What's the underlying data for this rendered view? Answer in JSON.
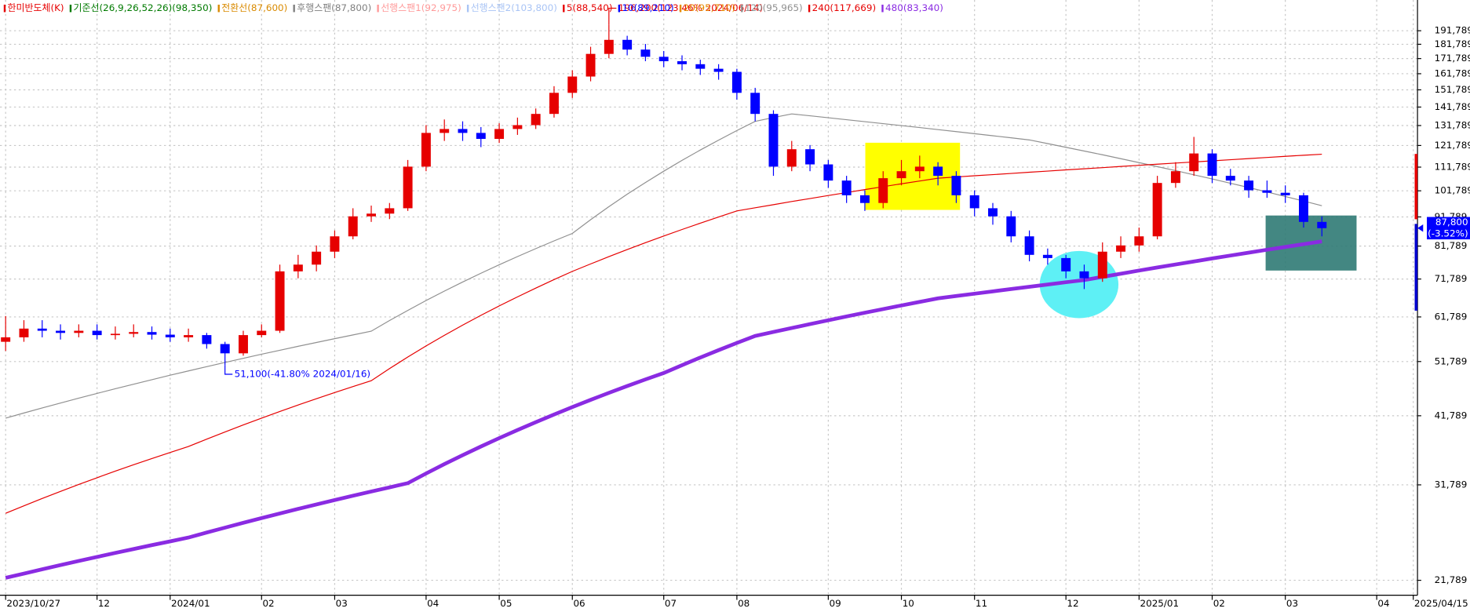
{
  "chart_data": {
    "type": "candlestick",
    "log_scale": true,
    "grid": true,
    "legend_position": "top-left",
    "ylim": [
      20540,
      216600
    ],
    "yticks": [
      {
        "value": 191789,
        "label": "191,789"
      },
      {
        "value": 181789,
        "label": "181,789"
      },
      {
        "value": 171789,
        "label": "171,789"
      },
      {
        "value": 161789,
        "label": "161,789"
      },
      {
        "value": 151789,
        "label": "151,789"
      },
      {
        "value": 141789,
        "label": "141,789"
      },
      {
        "value": 131789,
        "label": "131,789"
      },
      {
        "value": 121789,
        "label": "121,789"
      },
      {
        "value": 111789,
        "label": "111,789"
      },
      {
        "value": 101789,
        "label": "101,789"
      },
      {
        "value": 91789,
        "label": "91,789"
      },
      {
        "value": 81789,
        "label": "81,789"
      },
      {
        "value": 71789,
        "label": "71,789"
      },
      {
        "value": 61789,
        "label": "61,789"
      },
      {
        "value": 51789,
        "label": "51,789"
      },
      {
        "value": 41789,
        "label": "41,789"
      },
      {
        "value": 31789,
        "label": "31,789"
      },
      {
        "value": 21789,
        "label": "21,789"
      }
    ],
    "categories": [
      "2023/10/27",
      null,
      null,
      null,
      null,
      "12",
      null,
      null,
      null,
      "2024/01",
      null,
      null,
      null,
      null,
      "02",
      null,
      null,
      null,
      "03",
      null,
      null,
      null,
      null,
      "04",
      null,
      null,
      null,
      "05",
      null,
      null,
      null,
      "06",
      null,
      null,
      null,
      null,
      "07",
      null,
      null,
      null,
      "08",
      null,
      null,
      null,
      null,
      "09",
      null,
      null,
      null,
      "10",
      null,
      null,
      null,
      "11",
      null,
      null,
      null,
      null,
      "12",
      null,
      null,
      null,
      "2025/01",
      null,
      null,
      null,
      "02",
      null,
      null,
      null,
      "03",
      null,
      null,
      null,
      null,
      "04",
      null,
      "2025/04/15"
    ],
    "ohlc": {
      "name": "한미반도체(K)",
      "color": "#e60000",
      "color_down": "#0000ff",
      "open": [
        56000,
        57000,
        59000,
        58500,
        58000,
        58500,
        57500,
        57800,
        58200,
        57600,
        57000,
        57500,
        55500,
        53500,
        57500,
        58500,
        74000,
        76000,
        80000,
        85000,
        92000,
        93000,
        95000,
        112000,
        128000,
        130000,
        128000,
        125000,
        130000,
        132000,
        138000,
        150000,
        160000,
        175000,
        185000,
        178000,
        173000,
        170000,
        168000,
        165000,
        163000,
        150000,
        138000,
        112000,
        120000,
        113000,
        106000,
        100000,
        97000,
        107000,
        110000,
        112000,
        108000,
        100000,
        95000,
        92000,
        85000,
        79000,
        78000,
        74000,
        72000,
        80000,
        82000,
        85000,
        105000,
        110000,
        118000,
        108000,
        106000,
        102000,
        101000,
        100000,
        90000,
        null,
        null,
        null,
        null,
        null
      ],
      "high": [
        62000,
        61000,
        61000,
        60000,
        60000,
        60000,
        59500,
        60000,
        59500,
        59000,
        59000,
        58000,
        56000,
        58500,
        60000,
        76000,
        79000,
        82000,
        87000,
        95000,
        96000,
        97000,
        115000,
        132000,
        135000,
        134000,
        131000,
        133000,
        136000,
        141000,
        154000,
        164000,
        180000,
        196200,
        188000,
        182000,
        177000,
        174000,
        171000,
        168000,
        165000,
        153000,
        140000,
        124000,
        122000,
        115000,
        108000,
        102000,
        110000,
        115000,
        117000,
        114000,
        110000,
        102000,
        97000,
        94000,
        87000,
        81000,
        79000,
        76000,
        83000,
        85000,
        88000,
        108000,
        114000,
        126000,
        120000,
        111000,
        108000,
        106000,
        104000,
        101000,
        92000,
        null,
        null,
        null,
        null,
        null
      ],
      "low": [
        54000,
        56000,
        57000,
        56500,
        57000,
        56500,
        56500,
        57000,
        56500,
        56000,
        56000,
        54500,
        51100,
        53000,
        57000,
        58000,
        72000,
        74000,
        78000,
        84000,
        90000,
        91000,
        94000,
        110000,
        124000,
        124000,
        121000,
        123000,
        127000,
        130000,
        136000,
        147000,
        157000,
        172000,
        174000,
        170000,
        166000,
        164000,
        161000,
        158000,
        146000,
        134000,
        108000,
        110000,
        110000,
        103000,
        97000,
        94000,
        95000,
        104000,
        107000,
        104000,
        97000,
        92000,
        89000,
        83000,
        77000,
        76000,
        72000,
        69000,
        71000,
        78000,
        80000,
        84000,
        103000,
        108000,
        105000,
        104000,
        99000,
        99000,
        97000,
        88000,
        85000,
        null,
        null,
        null,
        null,
        null
      ],
      "close": [
        57000,
        59000,
        58500,
        58000,
        58500,
        57500,
        57800,
        58200,
        57600,
        57000,
        57500,
        55500,
        53500,
        57500,
        58500,
        74000,
        76000,
        80000,
        85000,
        92000,
        93000,
        95000,
        112000,
        128000,
        130000,
        128000,
        125000,
        130000,
        132000,
        138000,
        150000,
        160000,
        175000,
        185000,
        178000,
        173000,
        170000,
        168000,
        165000,
        163000,
        150000,
        138000,
        112000,
        120000,
        113000,
        106000,
        100000,
        97000,
        107000,
        110000,
        112000,
        108000,
        100000,
        95000,
        92000,
        85000,
        79000,
        78000,
        74000,
        72000,
        80000,
        82000,
        85000,
        105000,
        110000,
        118000,
        108000,
        106000,
        102000,
        101000,
        100000,
        90000,
        87800,
        null,
        null,
        null,
        null,
        null
      ]
    },
    "series": [
      {
        "name": "기준선(26,9,26,52,26)(98,350)",
        "color": "#007a00"
      },
      {
        "name": "전환선(87,600)",
        "color": "#d98a00"
      },
      {
        "name": "후행스팬(87,800)",
        "color": "#808080"
      },
      {
        "name": "선행스팬1(92,975)",
        "color": "#ff9a9a"
      },
      {
        "name": "선행스팬2(103,800)",
        "color": "#a9c4f5"
      },
      {
        "name": "5(88,540)",
        "color": "#e60000"
      },
      {
        "name": "10(89,210)",
        "color": "#0000ff"
      },
      {
        "name": "20(95,710)",
        "color": "#e68a00"
      },
      {
        "name": "120(95,965)",
        "color": "#909090",
        "width": 1,
        "values": [
          41400,
          42250,
          43100,
          43950,
          44800,
          45650,
          46500,
          47350,
          48200,
          49050,
          49900,
          50750,
          51600,
          52450,
          53300,
          54150,
          55000,
          55850,
          56700,
          57550,
          58400,
          60910,
          63420,
          65930,
          68440,
          70950,
          73450,
          75960,
          78470,
          80980,
          83490,
          86000,
          90800,
          95600,
          100400,
          105200,
          110000,
          114800,
          119600,
          124400,
          129200,
          134000,
          136000,
          138000,
          136960,
          135920,
          134890,
          133850,
          132810,
          131770,
          130730,
          129690,
          128660,
          127620,
          126580,
          125540,
          124500,
          122720,
          120930,
          119150,
          117370,
          115590,
          113800,
          112020,
          110240,
          108450,
          106670,
          104890,
          103110,
          101320,
          99540,
          97760,
          95965,
          null,
          null,
          null,
          null,
          null
        ]
      },
      {
        "name": "240(117,669)",
        "color": "#e60000",
        "width": 1,
        "values": [
          28400,
          29260,
          30120,
          30980,
          31840,
          32700,
          33560,
          34420,
          35280,
          36140,
          37000,
          38100,
          39200,
          40300,
          41400,
          42500,
          43600,
          44700,
          45800,
          46900,
          48000,
          50360,
          52730,
          55090,
          57450,
          59820,
          62180,
          64550,
          66910,
          69270,
          71640,
          74000,
          76220,
          78440,
          80670,
          82890,
          85110,
          87330,
          89560,
          91780,
          94000,
          95180,
          96360,
          97550,
          98730,
          99910,
          101090,
          102270,
          103450,
          104640,
          105820,
          107000,
          107510,
          108020,
          108520,
          109030,
          109540,
          110050,
          110560,
          111060,
          111570,
          112080,
          112590,
          113100,
          113610,
          114110,
          114620,
          115130,
          115640,
          116150,
          116650,
          117160,
          117669,
          null,
          null,
          null,
          null,
          null
        ]
      },
      {
        "name": "480(83,340)",
        "color": "#8a2be2",
        "width": 4,
        "values": [
          22000,
          22380,
          22760,
          23140,
          23520,
          23900,
          24280,
          24660,
          25040,
          25420,
          25800,
          26320,
          26830,
          27350,
          27870,
          28380,
          28900,
          29420,
          29930,
          30450,
          30970,
          31480,
          32000,
          33250,
          34500,
          35750,
          37000,
          38250,
          39500,
          40750,
          42000,
          43250,
          44500,
          45750,
          47000,
          48250,
          49500,
          51060,
          52620,
          54180,
          55740,
          57300,
          58220,
          59140,
          60060,
          60980,
          61900,
          62820,
          63740,
          64660,
          65580,
          66500,
          67130,
          67750,
          68380,
          69000,
          69630,
          70250,
          70880,
          71500,
          72410,
          73320,
          74230,
          75140,
          76050,
          76960,
          77880,
          78790,
          79700,
          80610,
          81520,
          82430,
          83340,
          null,
          null,
          null,
          null,
          null
        ]
      }
    ],
    "annotations": [
      {
        "text": "196,200(123.46% 2024/06/14)",
        "index": 33,
        "value": 196200,
        "color": "#e60000"
      },
      {
        "text": "51,100(-41.80% 2024/01/16)",
        "index": 12,
        "value": 51100,
        "color": "#0000ff"
      }
    ],
    "current": {
      "value": 87800,
      "label": "87,800",
      "change": "(-3.52%)",
      "color": "#0000ff"
    }
  }
}
